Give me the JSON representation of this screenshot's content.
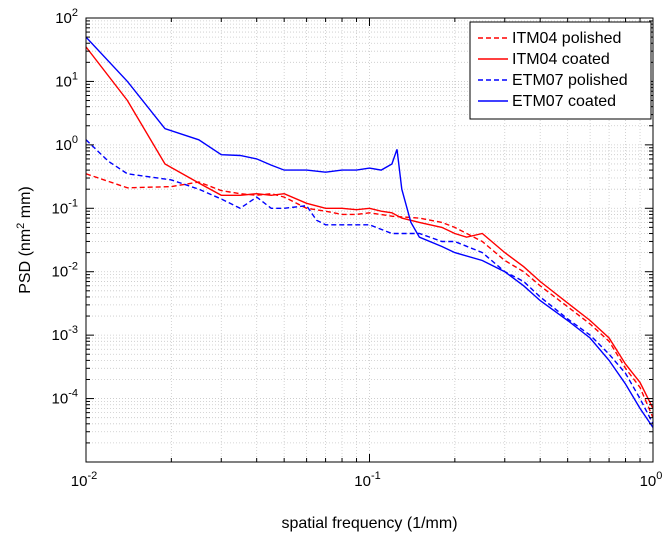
{
  "chart_data": {
    "type": "line",
    "xscale": "log",
    "yscale": "log",
    "xlim": [
      0.01,
      1
    ],
    "ylim": [
      1e-05,
      100
    ],
    "grid": true,
    "xlabel": "spatial frequency (1/mm)",
    "ylabel_prefix": "PSD (nm",
    "ylabel_sup": "2",
    "ylabel_suffix": " mm)",
    "legend_position": "top-right",
    "xticks": [
      {
        "value": 0.01,
        "base": "10",
        "exp": "-2"
      },
      {
        "value": 0.1,
        "base": "10",
        "exp": "-1"
      },
      {
        "value": 1,
        "base": "10",
        "exp": "0"
      }
    ],
    "yticks": [
      {
        "value": 0.0001,
        "base": "10",
        "exp": "-4"
      },
      {
        "value": 0.001,
        "base": "10",
        "exp": "-3"
      },
      {
        "value": 0.01,
        "base": "10",
        "exp": "-2"
      },
      {
        "value": 0.1,
        "base": "10",
        "exp": "-1"
      },
      {
        "value": 1,
        "base": "10",
        "exp": "0"
      },
      {
        "value": 10,
        "base": "10",
        "exp": "1"
      },
      {
        "value": 100,
        "base": "10",
        "exp": "2"
      }
    ],
    "series": [
      {
        "name": "ITM04 polished",
        "color": "#ff0000",
        "dash": "dashed",
        "x": [
          0.01,
          0.014,
          0.02,
          0.025,
          0.03,
          0.035,
          0.04,
          0.045,
          0.05,
          0.06,
          0.07,
          0.08,
          0.09,
          0.1,
          0.12,
          0.15,
          0.18,
          0.2,
          0.25,
          0.3,
          0.35,
          0.4,
          0.5,
          0.6,
          0.7,
          0.8,
          0.9,
          1.0
        ],
        "y": [
          0.35,
          0.21,
          0.22,
          0.26,
          0.19,
          0.17,
          0.16,
          0.17,
          0.15,
          0.1,
          0.09,
          0.08,
          0.08,
          0.085,
          0.075,
          0.07,
          0.06,
          0.05,
          0.03,
          0.015,
          0.01,
          0.006,
          0.0028,
          0.0015,
          0.0008,
          0.0003,
          0.00015,
          5e-05
        ]
      },
      {
        "name": "ITM04 coated",
        "color": "#ff0000",
        "dash": "solid",
        "x": [
          0.01,
          0.014,
          0.019,
          0.025,
          0.03,
          0.035,
          0.04,
          0.045,
          0.05,
          0.06,
          0.07,
          0.08,
          0.09,
          0.1,
          0.11,
          0.12,
          0.13,
          0.15,
          0.18,
          0.2,
          0.22,
          0.25,
          0.3,
          0.35,
          0.4,
          0.5,
          0.6,
          0.7,
          0.8,
          0.9,
          1.0
        ],
        "y": [
          35,
          5,
          0.5,
          0.25,
          0.16,
          0.16,
          0.17,
          0.16,
          0.17,
          0.12,
          0.1,
          0.1,
          0.095,
          0.1,
          0.09,
          0.085,
          0.07,
          0.06,
          0.05,
          0.04,
          0.035,
          0.04,
          0.02,
          0.012,
          0.007,
          0.0032,
          0.0017,
          0.0009,
          0.00035,
          0.00018,
          7e-05
        ]
      },
      {
        "name": "ETM07 polished",
        "color": "#0000ff",
        "dash": "dashed",
        "x": [
          0.01,
          0.012,
          0.014,
          0.02,
          0.025,
          0.03,
          0.035,
          0.04,
          0.045,
          0.05,
          0.06,
          0.065,
          0.07,
          0.08,
          0.09,
          0.1,
          0.12,
          0.13,
          0.15,
          0.18,
          0.2,
          0.25,
          0.3,
          0.35,
          0.4,
          0.5,
          0.6,
          0.7,
          0.8,
          0.9,
          1.0
        ],
        "y": [
          1.2,
          0.55,
          0.35,
          0.28,
          0.2,
          0.14,
          0.1,
          0.15,
          0.1,
          0.1,
          0.11,
          0.065,
          0.055,
          0.055,
          0.055,
          0.055,
          0.04,
          0.04,
          0.04,
          0.03,
          0.03,
          0.02,
          0.01,
          0.007,
          0.004,
          0.0018,
          0.001,
          0.0005,
          0.00025,
          0.0001,
          4e-05
        ]
      },
      {
        "name": "ETM07 coated",
        "color": "#0000ff",
        "dash": "solid",
        "x": [
          0.01,
          0.014,
          0.019,
          0.025,
          0.03,
          0.035,
          0.04,
          0.045,
          0.05,
          0.06,
          0.07,
          0.08,
          0.09,
          0.1,
          0.11,
          0.12,
          0.125,
          0.13,
          0.14,
          0.15,
          0.18,
          0.2,
          0.25,
          0.3,
          0.35,
          0.4,
          0.5,
          0.6,
          0.7,
          0.8,
          0.9,
          1.0
        ],
        "y": [
          50,
          10,
          1.8,
          1.2,
          0.7,
          0.68,
          0.6,
          0.48,
          0.4,
          0.4,
          0.37,
          0.4,
          0.4,
          0.43,
          0.4,
          0.5,
          0.85,
          0.2,
          0.06,
          0.035,
          0.025,
          0.02,
          0.015,
          0.01,
          0.006,
          0.0035,
          0.0017,
          0.0009,
          0.0004,
          0.00017,
          7e-05,
          3.5e-05
        ]
      }
    ]
  }
}
